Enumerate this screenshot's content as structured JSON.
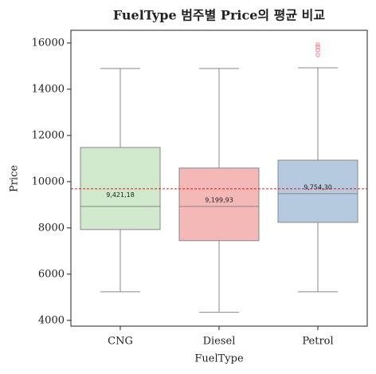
{
  "chart_data": {
    "type": "box",
    "title": "FuelType 범주별 Price의 평균 비교",
    "x_label": "FuelType",
    "y_label": "Price",
    "categories": [
      "CNG",
      "Diesel",
      "Petrol"
    ],
    "colors": [
      "#d0e8cc",
      "#f4b9b7",
      "#b5cadf"
    ],
    "boxes": [
      {
        "whislo": 5240,
        "q1": 7930,
        "med": 8930,
        "q3": 11480,
        "whishi": 14900,
        "fliers": [],
        "mean": 9421.18,
        "mean_label": "9,421,18"
      },
      {
        "whislo": 4350,
        "q1": 7450,
        "med": 8930,
        "q3": 10590,
        "whishi": 14900,
        "fliers": [],
        "mean": 9199.93,
        "mean_label": "9,199,93"
      },
      {
        "whislo": 5240,
        "q1": 8240,
        "med": 9480,
        "q3": 10930,
        "whishi": 14930,
        "fliers": [
          15480,
          15690,
          15830,
          15930
        ],
        "mean": 9754.3,
        "mean_label": "9,754,30"
      }
    ],
    "overall_mean": 9690,
    "ylim": [
      3750,
      16550
    ],
    "yticks": [
      4000,
      6000,
      8000,
      10000,
      12000,
      14000,
      16000
    ]
  }
}
